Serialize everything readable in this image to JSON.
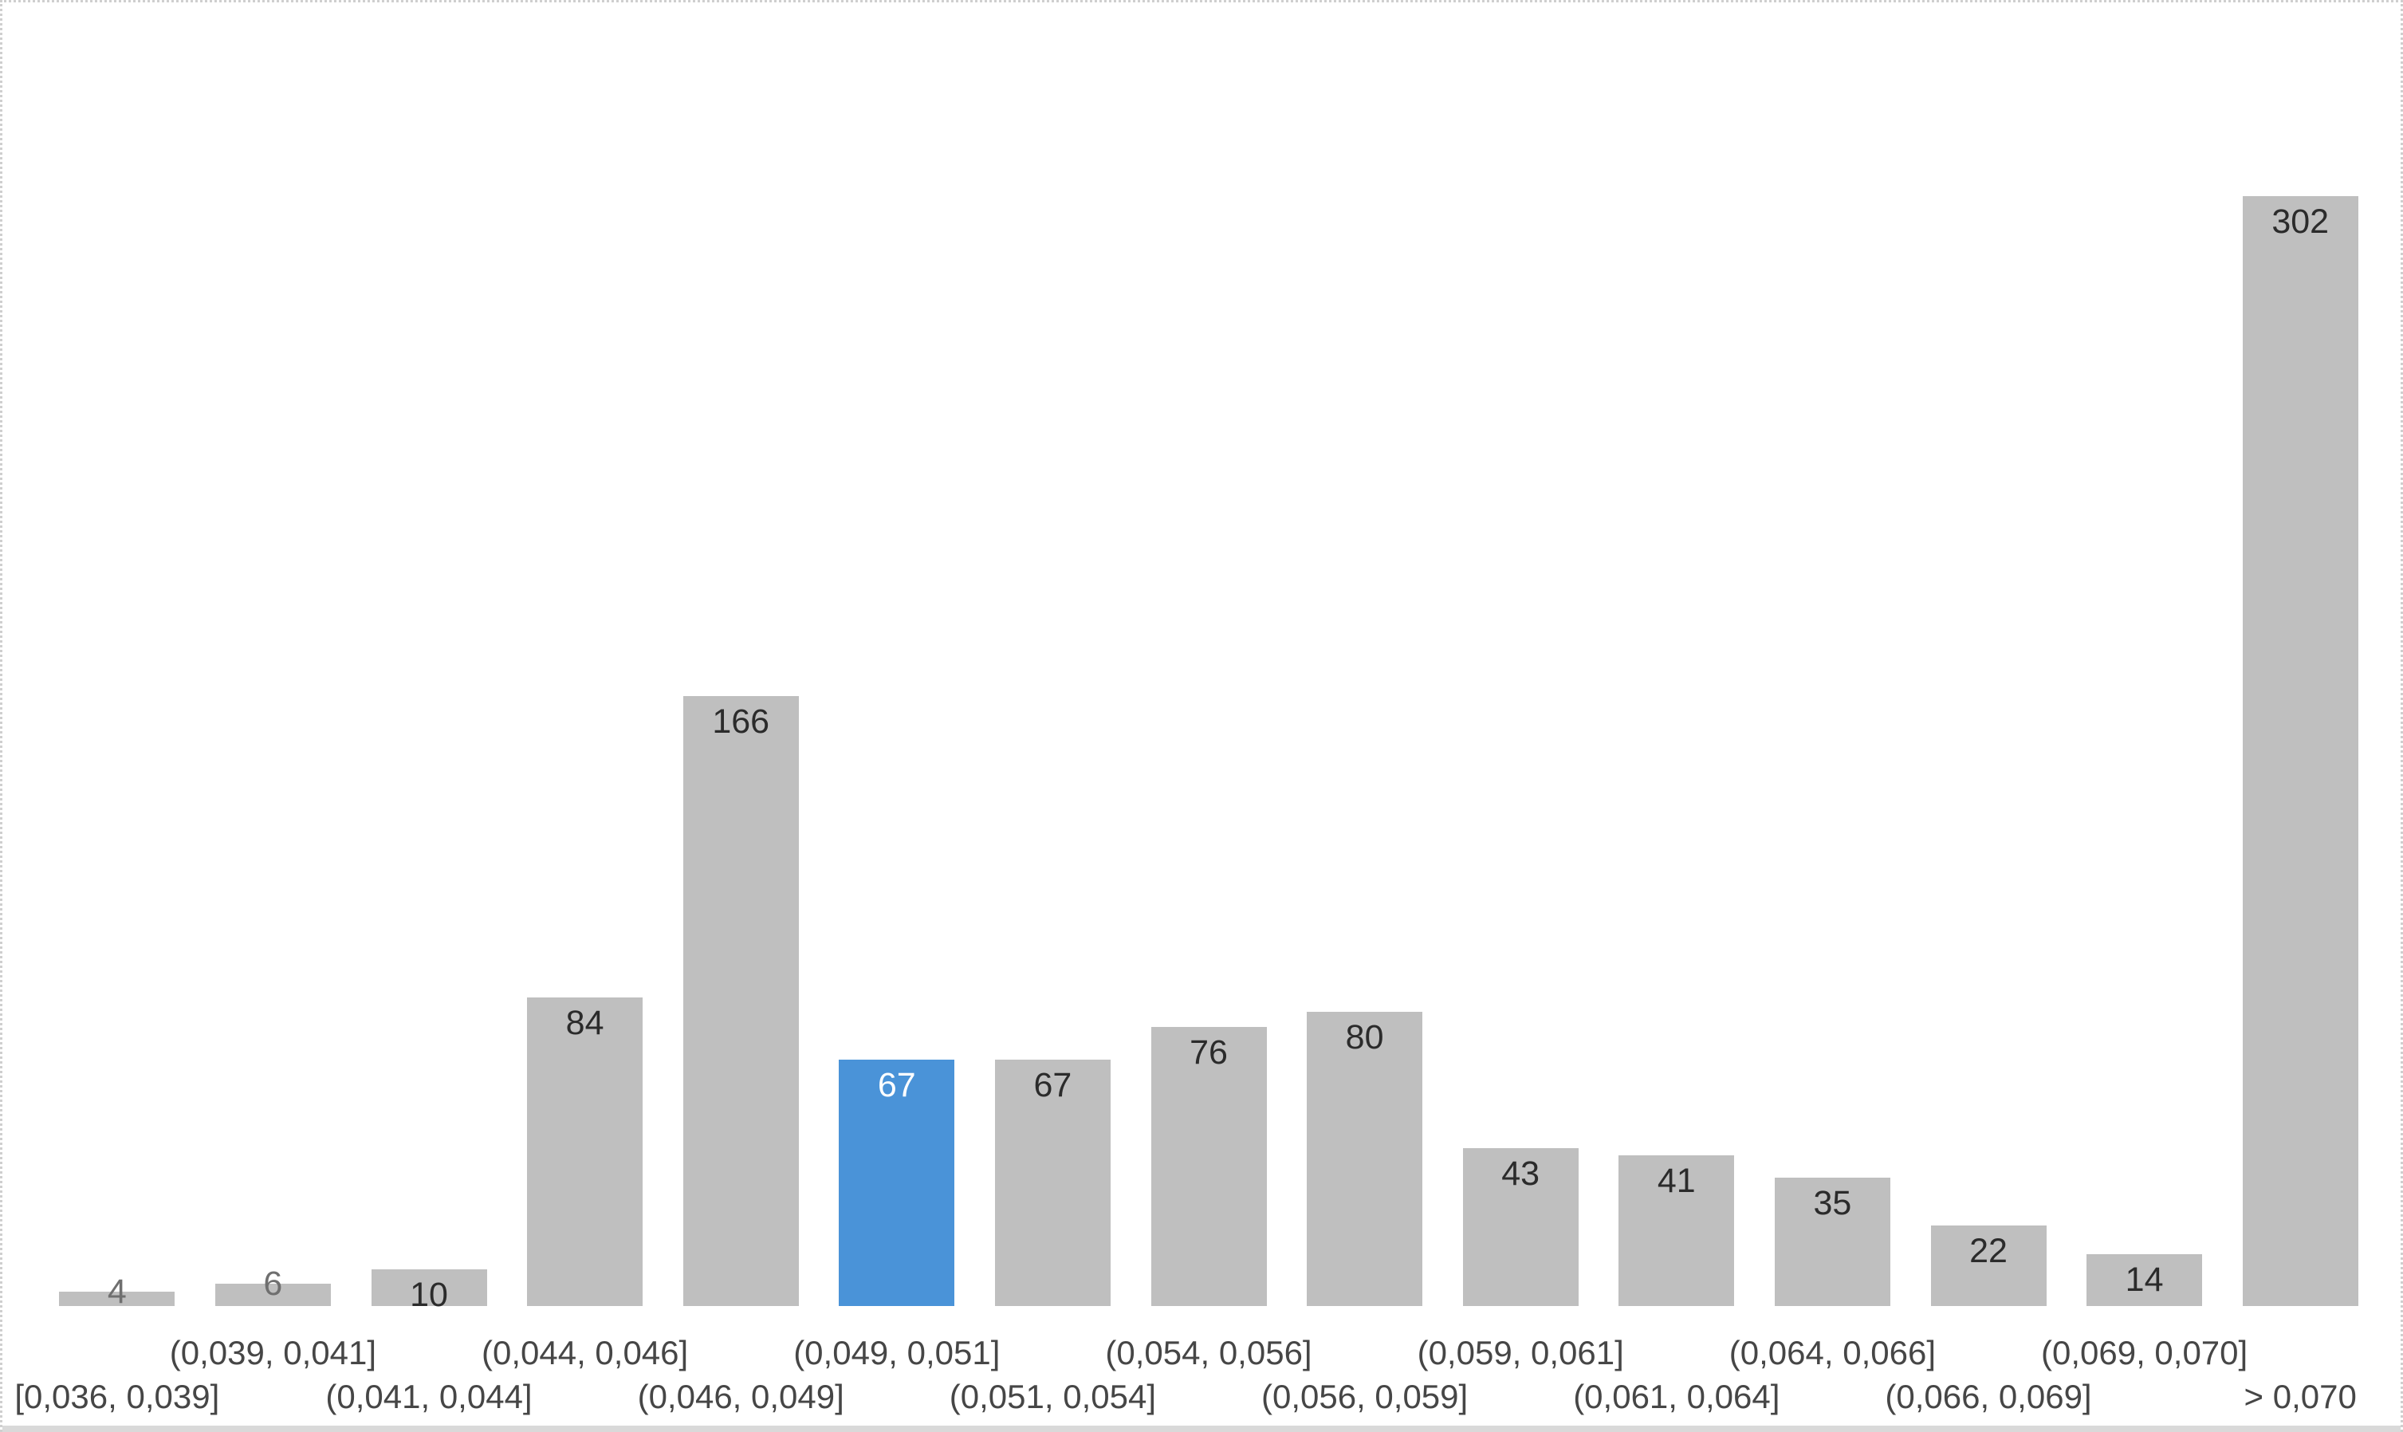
{
  "chart_data": {
    "type": "bar",
    "title": "",
    "xlabel": "",
    "ylabel": "",
    "categories": [
      "[0,036, 0,039]",
      "(0,039, 0,041]",
      "(0,041, 0,044]",
      "(0,044, 0,046]",
      "(0,046, 0,049]",
      "(0,049, 0,051]",
      "(0,051, 0,054]",
      "(0,054, 0,056]",
      "(0,056, 0,059]",
      "(0,059, 0,061]",
      "(0,061, 0,064]",
      "(0,064, 0,066]",
      "(0,066, 0,069]",
      "(0,069, 0,070]",
      "> 0,070"
    ],
    "values": [
      4,
      6,
      10,
      84,
      166,
      67,
      67,
      76,
      80,
      43,
      41,
      35,
      22,
      14,
      302
    ],
    "highlighted_index": 5,
    "data_labels_visible": true,
    "y_axis_visible": false,
    "gridlines": false,
    "legend": "none",
    "x_axis_two_row_labels": true,
    "colors": {
      "bar": "#bfbfbf",
      "highlight": "#4a93d8",
      "label_inside": "#2b2b2b",
      "label_outside": "#6f6f6f",
      "label_on_highlight": "#ffffff",
      "axis_label": "#464646",
      "page_border": "#cfcfcf",
      "bottom_strip": "#d9d9d9",
      "background": "#ffffff"
    }
  }
}
